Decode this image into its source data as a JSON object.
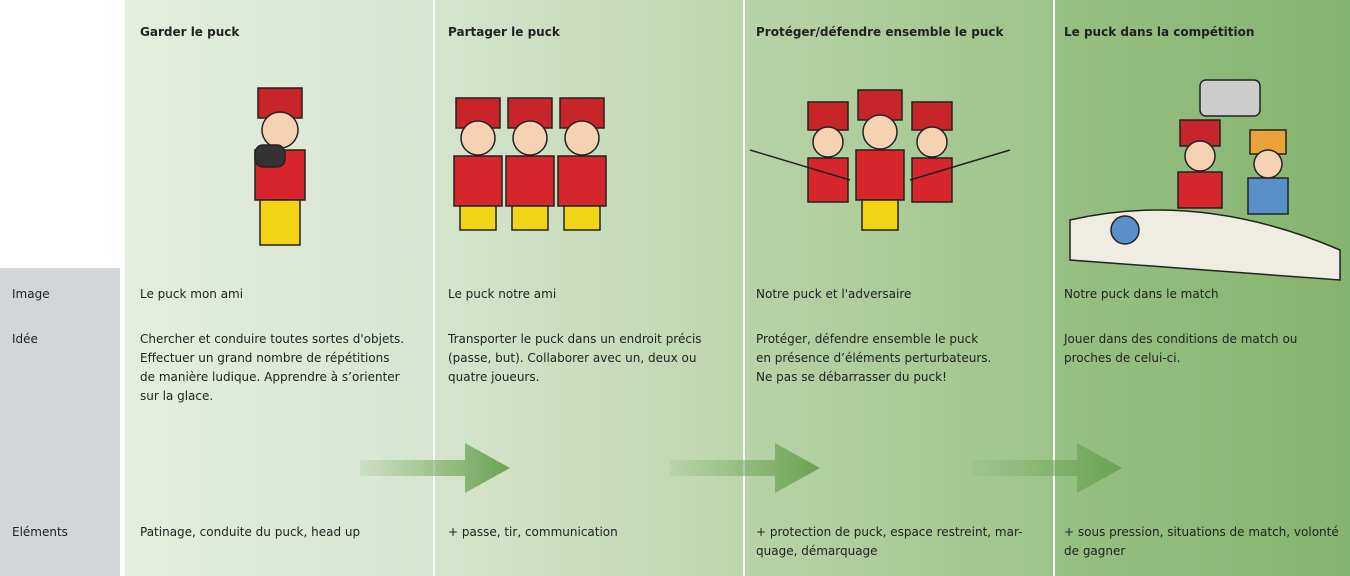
{
  "row_labels": [
    "Image",
    "Idée",
    "Eléments"
  ],
  "columns": [
    {
      "title": "Garder le puck",
      "image": "Le puck mon ami",
      "idea": [
        "Chercher et conduire toutes sortes d'objets.",
        "Effectuer un grand nombre de répétitions",
        "de manière ludique. Apprendre à s’orienter",
        "sur la glace."
      ],
      "elements": [
        "Patinage, conduite du puck, head up"
      ]
    },
    {
      "title": "Partager le puck",
      "image": "Le puck notre ami",
      "idea": [
        "Transporter le puck dans un endroit précis",
        "(passe, but). Collaborer avec un, deux ou",
        "quatre joueurs."
      ],
      "elements": [
        "+ passe, tir, communication"
      ]
    },
    {
      "title": "Protéger/défendre ensemble le puck",
      "image": "Notre puck et l'adversaire",
      "idea": [
        "Protéger, défendre ensemble le puck",
        "en présence d’éléments perturbateurs.",
        "Ne pas se débarrasser du puck!"
      ],
      "elements": [
        "+ protection de puck, espace restreint, mar-",
        "quage, démarquage"
      ]
    },
    {
      "title": "Le puck dans la compétition",
      "image": "Notre puck dans le match",
      "idea": [
        "Jouer dans des conditions de match ou",
        "proches de celui-ci."
      ],
      "elements": [
        "+ sous pression, situations de match, volonté",
        "de gagner"
      ]
    }
  ]
}
